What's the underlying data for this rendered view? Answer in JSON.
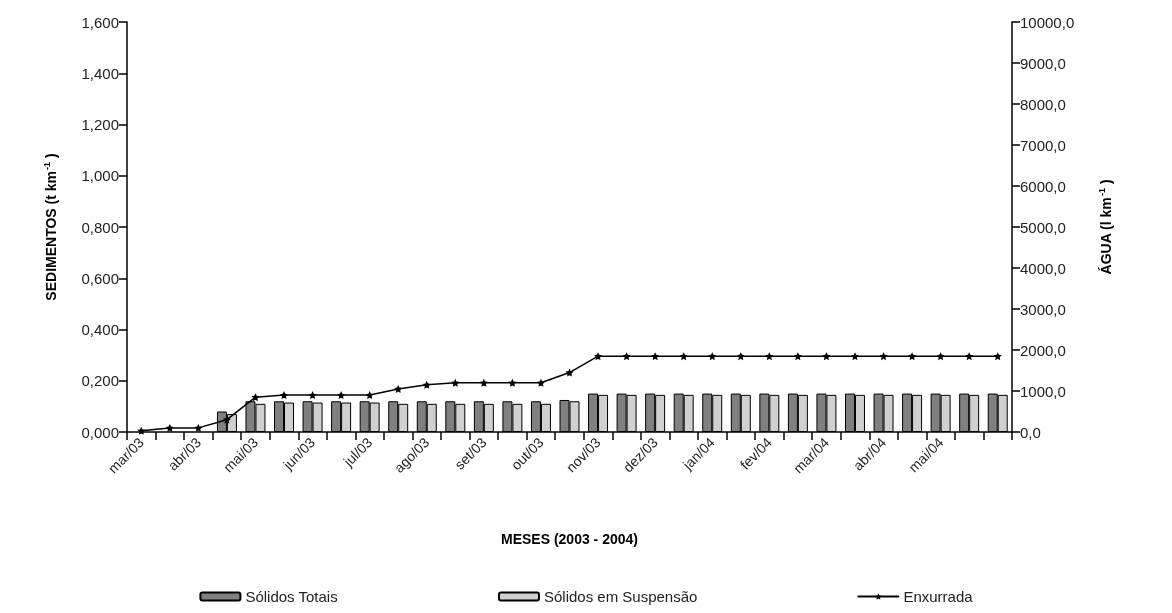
{
  "chart_data": {
    "type": "bar",
    "xlabel": "MESES (2003 - 2004)",
    "ylabel": "SEDIMENTOS (t km$^{-1}$)",
    "y2label": "ÁGUA (l km$^{-1}$)",
    "categories": [
      "mar/03",
      null,
      "abr/03",
      null,
      "mai/03",
      null,
      "jun/03",
      null,
      "jul/03",
      null,
      "ago/03",
      null,
      "set/03",
      null,
      "out/03",
      null,
      "nov/03",
      null,
      "dez/03",
      null,
      "jan/04",
      null,
      "fev/04",
      null,
      "mar/04",
      null,
      "abr/04",
      null,
      "mai/04",
      null,
      null
    ],
    "series": [
      {
        "name": "Sólidos Totais",
        "color": "#808080",
        "values": [
          0,
          0,
          0,
          0.08,
          0.12,
          0.12,
          0.12,
          0.12,
          0.12,
          0.12,
          0.12,
          0.12,
          0.12,
          0.12,
          0.12,
          0.125,
          0.15,
          0.15,
          0.15,
          0.15,
          0.15,
          0.15,
          0.15,
          0.15,
          0.15,
          0.15,
          0.15,
          0.15,
          0.15,
          0.15,
          0.15
        ]
      },
      {
        "name": "Sólidos em Suspensão",
        "color": "#d0d0d0",
        "values": [
          0,
          0,
          0,
          0.07,
          0.11,
          0.115,
          0.115,
          0.115,
          0.115,
          0.11,
          0.11,
          0.11,
          0.11,
          0.11,
          0.11,
          0.12,
          0.145,
          0.145,
          0.145,
          0.145,
          0.145,
          0.145,
          0.145,
          0.145,
          0.145,
          0.145,
          0.145,
          0.145,
          0.145,
          0.145,
          0.145
        ]
      },
      {
        "name": "Enxurrada",
        "type": "line",
        "axis": "y2",
        "color": "#000000",
        "marker": "star",
        "values": [
          30,
          100,
          100,
          300,
          850,
          900,
          900,
          900,
          900,
          1050,
          1150,
          1200,
          1200,
          1200,
          1200,
          1450,
          1850,
          1850,
          1850,
          1850,
          1850,
          1850,
          1850,
          1850,
          1850,
          1850,
          1850,
          1850,
          1850,
          1850,
          1850
        ]
      }
    ],
    "ylim": [
      0,
      1.6
    ],
    "yticks": [
      {
        "value": 0,
        "label": "0,000"
      },
      {
        "value": 0.2,
        "label": "0,200"
      },
      {
        "value": 0.4,
        "label": "0,400"
      },
      {
        "value": 0.6,
        "label": "0,600"
      },
      {
        "value": 0.8,
        "label": "0,800"
      },
      {
        "value": 1,
        "label": "1,000"
      },
      {
        "value": 1.2,
        "label": "1,200"
      },
      {
        "value": 1.4,
        "label": "1,400"
      },
      {
        "value": 1.6,
        "label": "1,600"
      }
    ],
    "y2lim": [
      0,
      10000
    ],
    "y2ticks": [
      {
        "value": 0,
        "label": "0,0"
      },
      {
        "value": 1000,
        "label": "1000,0"
      },
      {
        "value": 2000,
        "label": "2000,0"
      },
      {
        "value": 3000,
        "label": "3000,0"
      },
      {
        "value": 4000,
        "label": "4000,0"
      },
      {
        "value": 5000,
        "label": "5000,0"
      },
      {
        "value": 6000,
        "label": "6000,0"
      },
      {
        "value": 7000,
        "label": "7000,0"
      },
      {
        "value": 8000,
        "label": "8000,0"
      },
      {
        "value": 9000,
        "label": "9000,0"
      },
      {
        "value": 10000,
        "label": "10000,0"
      }
    ],
    "grid": false,
    "legend": "bottom"
  }
}
